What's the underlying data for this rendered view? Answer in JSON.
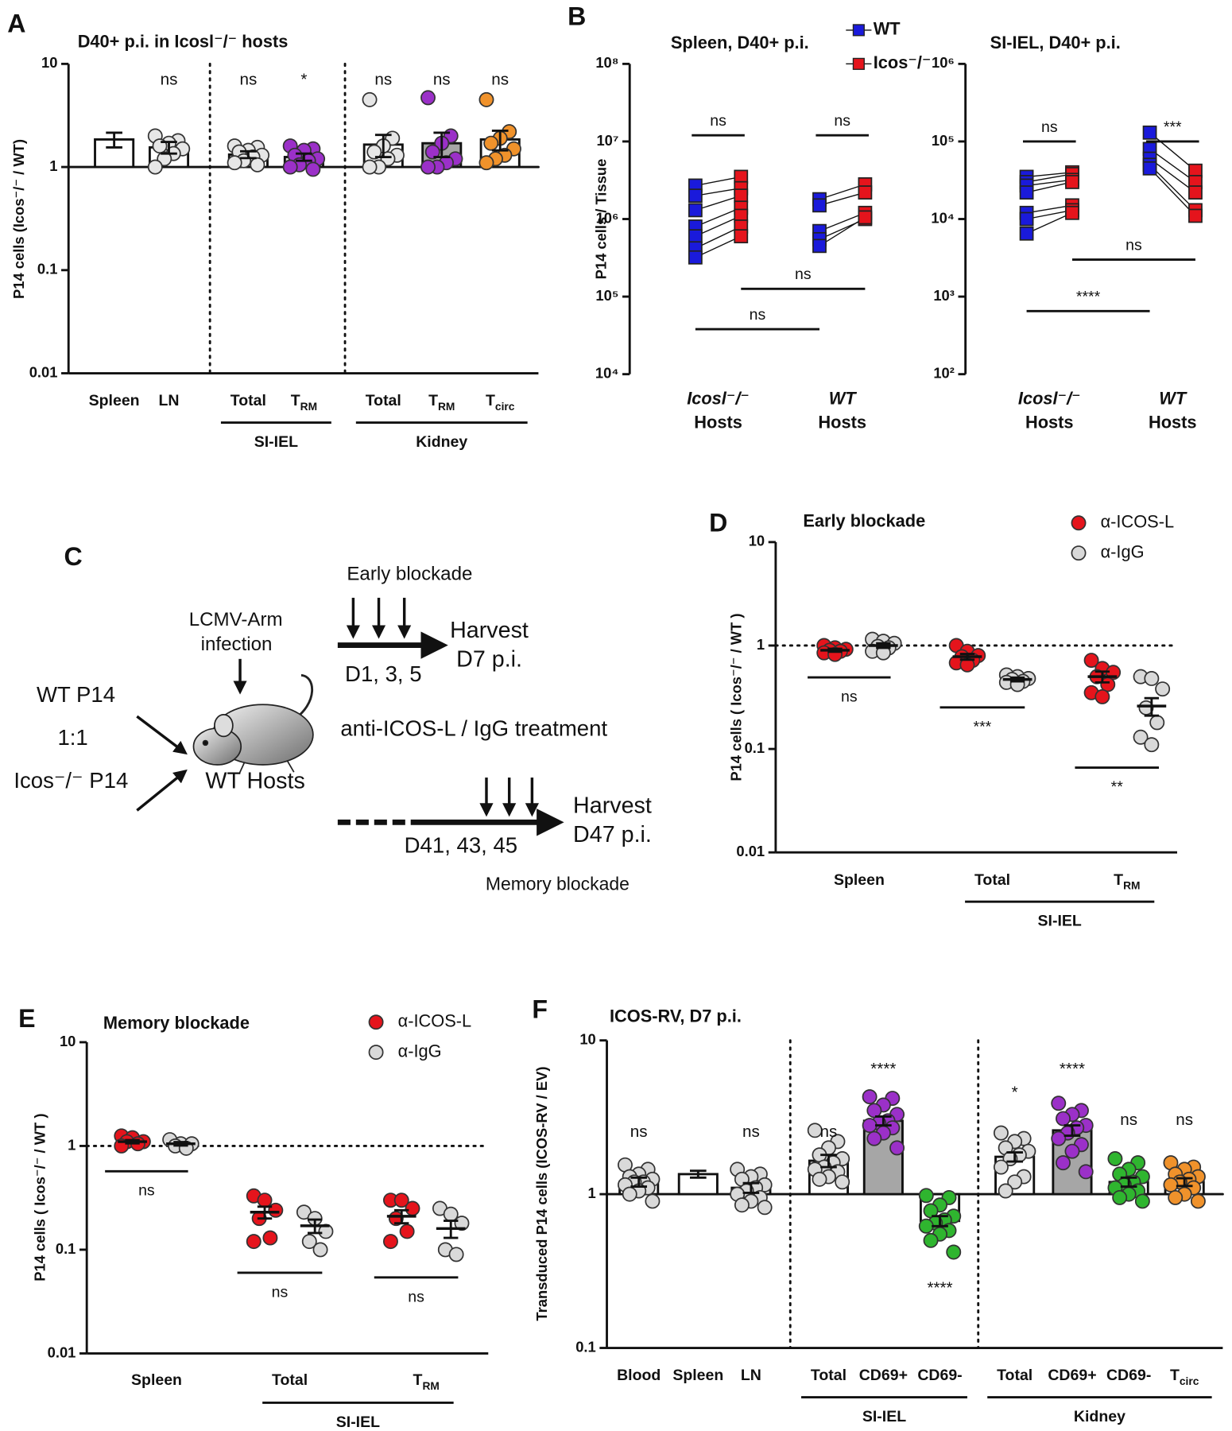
{
  "chart_data": [
    {
      "type": "bar",
      "panel": "A",
      "title": "D40+ p.i. in Icosl⁻/⁻ hosts",
      "ylabel": "P14 cells  (Icos⁻/⁻ / WT)",
      "log": true,
      "ylim": [
        0.01,
        10
      ],
      "yticks": [
        0.01,
        0.1,
        1,
        10
      ],
      "ref_line": {
        "value": 1,
        "style": "solid"
      },
      "separators": true,
      "groups": [
        {
          "label": "Spleen",
          "color": "#e6e6e6",
          "bar_color": "#ffffff",
          "mean": 1.85,
          "sem": 0.3,
          "values": [],
          "sig": null
        },
        {
          "label": "LN",
          "color": "#e6e6e6",
          "bar_color": "#ffffff",
          "mean": 1.55,
          "sem": 0.2,
          "values": [
            2.0,
            1.8,
            1.7,
            1.6,
            1.5,
            1.35,
            1.2,
            1.0
          ],
          "sig": "ns"
        },
        {
          "label": "Total",
          "color": "#e6e6e6",
          "bar_color": "#ffffff",
          "mean": 1.32,
          "sem": 0.1,
          "values": [
            1.6,
            1.55,
            1.45,
            1.4,
            1.3,
            1.25,
            1.15,
            1.1,
            1.05
          ],
          "sig": "ns"
        },
        {
          "label": "T",
          "subscript": "RM",
          "color": "#9b30c8",
          "bar_color": "#d9d9d9",
          "mean": 1.25,
          "sem": 0.1,
          "values": [
            1.6,
            1.5,
            1.45,
            1.3,
            1.2,
            1.15,
            1.05,
            1.0,
            0.95
          ],
          "sig": "*"
        },
        {
          "label": "Total",
          "color": "#e6e6e6",
          "bar_color": "#ffffff",
          "mean": 1.65,
          "sem": 0.4,
          "values": [
            4.5,
            1.9,
            1.6,
            1.4,
            1.3,
            1.2,
            1.0,
            1.0
          ],
          "sig": "ns"
        },
        {
          "label": "T",
          "subscript": "RM",
          "color": "#9b30c8",
          "bar_color": "#a6a6a6",
          "mean": 1.7,
          "sem": 0.45,
          "values": [
            4.7,
            2.0,
            1.7,
            1.4,
            1.2,
            1.1,
            1.0,
            1.0
          ],
          "sig": "ns"
        },
        {
          "label": "T",
          "subscript": "circ",
          "color": "#f0922b",
          "bar_color": "#ffffff",
          "mean": 1.85,
          "sem": 0.4,
          "values": [
            4.5,
            2.2,
            1.9,
            1.7,
            1.5,
            1.3,
            1.2,
            1.1
          ],
          "sig": "ns"
        }
      ],
      "sections": [
        {
          "label": "SI-IEL",
          "groups": [
            2,
            3
          ]
        },
        {
          "label": "Kidney",
          "groups": [
            4,
            5,
            6
          ]
        }
      ]
    },
    {
      "type": "paired",
      "panel": "B",
      "title": "Spleen, D40+ p.i.",
      "ylabel": "P14 cells / Tissue",
      "log": true,
      "legend": "top-right",
      "ylim": [
        10000,
        100000000
      ],
      "yticks": [
        {
          "value": 10000,
          "label": "10⁴"
        },
        {
          "value": 100000,
          "label": "10⁵"
        },
        {
          "value": 1000000,
          "label": "10⁶"
        },
        {
          "value": 10000000,
          "label": "10⁷"
        },
        {
          "value": 100000000,
          "label": "10⁸"
        }
      ],
      "categories": [
        {
          "label": "Icosl⁻/⁻",
          "sublabel": "Hosts"
        },
        {
          "label": "WT",
          "sublabel": "Hosts"
        }
      ],
      "series": [
        {
          "name": "WT",
          "color": "#1a1adb",
          "values": [
            [
              2700000,
              2000000,
              1300000,
              800000,
              600000,
              420000,
              320000
            ],
            [
              1800000,
              1500000,
              700000,
              550000,
              450000
            ]
          ]
        },
        {
          "name": "Icos⁻/⁻",
          "color": "#e5141c",
          "values": [
            [
              3500000,
              2500000,
              2000000,
              1400000,
              1100000,
              800000,
              600000
            ],
            [
              2800000,
              2200000,
              1200000,
              1000000,
              1050000
            ]
          ]
        }
      ],
      "brackets": [
        {
          "label": "ns",
          "y": 12000000,
          "cats": [
            0,
            0
          ],
          "series": [
            0,
            1
          ]
        },
        {
          "label": "ns",
          "y": 12000000,
          "cats": [
            1,
            1
          ],
          "series": [
            0,
            1
          ]
        },
        {
          "label": "ns",
          "y": 126000,
          "cats": [
            0,
            1
          ],
          "series": [
            1,
            1
          ]
        },
        {
          "label": "ns",
          "y": 38000,
          "cats": [
            0,
            1
          ],
          "series": [
            0,
            0
          ]
        }
      ]
    },
    {
      "type": "paired",
      "title": "SI-IEL, D40+ p.i.",
      "log": true,
      "ylim": [
        100,
        1000000
      ],
      "yticks": [
        {
          "value": 100,
          "label": "10²"
        },
        {
          "value": 1000,
          "label": "10³"
        },
        {
          "value": 10000,
          "label": "10⁴"
        },
        {
          "value": 100000,
          "label": "10⁵"
        },
        {
          "value": 1000000,
          "label": "10⁶"
        }
      ],
      "categories": [
        {
          "label": "Icosl⁻/⁻",
          "sublabel": "Hosts"
        },
        {
          "label": "WT",
          "sublabel": "Hosts"
        }
      ],
      "series": [
        {
          "color": "#1a1adb",
          "values": [
            [
              35000,
              30000,
              27000,
              22000,
              12000,
              10000,
              6500
            ],
            [
              130000,
              80000,
              60000,
              50000,
              45000
            ]
          ]
        },
        {
          "color": "#e5141c",
          "values": [
            [
              40000,
              38000,
              32000,
              30000,
              15000,
              13000,
              12000
            ],
            [
              42000,
              30000,
              22000,
              13000,
              11000
            ]
          ]
        }
      ],
      "brackets": [
        {
          "label": "ns",
          "y": 100000,
          "cats": [
            0,
            0
          ],
          "series": [
            0,
            1
          ]
        },
        {
          "label": "***",
          "y": 100000,
          "cats": [
            1,
            1
          ],
          "series": [
            0,
            1
          ]
        },
        {
          "label": "ns",
          "y": 3000,
          "cats": [
            0,
            1
          ],
          "series": [
            1,
            1
          ]
        },
        {
          "label": "****",
          "y": 650,
          "cats": [
            0,
            1
          ],
          "series": [
            0,
            0
          ]
        }
      ]
    },
    {
      "type": "dot",
      "panel": "D",
      "title": "Early blockade",
      "ylabel": "P14 cells  ( Icos⁻/⁻ / WT )",
      "log": true,
      "legend": "top-right",
      "ylim": [
        0.01,
        10
      ],
      "yticks": [
        0.01,
        0.1,
        1,
        10
      ],
      "ref_line": {
        "value": 1,
        "style": "dotted"
      },
      "categories": [
        {
          "label": "Spleen"
        },
        {
          "label": "Total"
        },
        {
          "label": "T",
          "subscript": "RM"
        }
      ],
      "series": [
        {
          "name": "α-ICOS-L",
          "color": "#e5141c",
          "values": [
            [
              1.0,
              0.95,
              0.92,
              0.9,
              0.88,
              0.85,
              0.82
            ],
            [
              1.0,
              0.88,
              0.8,
              0.78,
              0.72,
              0.68,
              0.65
            ],
            [
              0.72,
              0.6,
              0.55,
              0.5,
              0.42,
              0.35,
              0.32
            ]
          ],
          "means": [
            0.9,
            0.78,
            0.5
          ],
          "sems": [
            0.03,
            0.05,
            0.06
          ]
        },
        {
          "name": "α-IgG",
          "color": "#d9d9d9",
          "values": [
            [
              1.15,
              1.1,
              1.05,
              0.98,
              0.95,
              0.88,
              0.85
            ],
            [
              0.52,
              0.5,
              0.48,
              0.47,
              0.45,
              0.44,
              0.42
            ],
            [
              0.5,
              0.48,
              0.38,
              0.25,
              0.18,
              0.13,
              0.11
            ]
          ],
          "means": [
            1.0,
            0.47,
            0.26
          ],
          "sems": [
            0.05,
            0.02,
            0.05
          ]
        }
      ],
      "comparisons": [
        "ns",
        "***",
        "**"
      ],
      "sections": [
        {
          "label": "SI-IEL",
          "groups": [
            1,
            2
          ]
        }
      ]
    },
    {
      "type": "dot",
      "panel": "E",
      "title": "Memory blockade",
      "ylabel": "P14 cells  ( Icos⁻/⁻ / WT )",
      "log": true,
      "legend": "top-right",
      "ylim": [
        0.01,
        10
      ],
      "yticks": [
        0.01,
        0.1,
        1,
        10
      ],
      "ref_line": {
        "value": 1,
        "style": "dotted"
      },
      "categories": [
        {
          "label": "Spleen"
        },
        {
          "label": "Total"
        },
        {
          "label": "T",
          "subscript": "RM"
        }
      ],
      "series": [
        {
          "name": "α-ICOS-L",
          "color": "#e5141c",
          "values": [
            [
              1.25,
              1.2,
              1.1,
              1.1,
              1.05,
              1.0
            ],
            [
              0.33,
              0.3,
              0.24,
              0.2,
              0.13,
              0.12
            ],
            [
              0.3,
              0.3,
              0.25,
              0.2,
              0.15,
              0.12
            ]
          ],
          "means": [
            1.1,
            0.23,
            0.21
          ],
          "sems": [
            0.04,
            0.03,
            0.03
          ]
        },
        {
          "name": "α-IgG",
          "color": "#d9d9d9",
          "values": [
            [
              1.15,
              1.05,
              1.05,
              1.0,
              0.95
            ],
            [
              0.23,
              0.2,
              0.15,
              0.12,
              0.1
            ],
            [
              0.25,
              0.22,
              0.18,
              0.1,
              0.09
            ]
          ],
          "means": [
            1.05,
            0.17,
            0.16
          ],
          "sems": [
            0.04,
            0.025,
            0.03
          ]
        }
      ],
      "comparisons": [
        "ns",
        "ns",
        "ns"
      ],
      "sections": [
        {
          "label": "SI-IEL",
          "groups": [
            1,
            2
          ]
        }
      ]
    },
    {
      "type": "bar",
      "panel": "F",
      "title": "ICOS-RV, D7 p.i.",
      "ylabel": "Transduced P14 cells (ICOS-RV / EV)",
      "log": true,
      "ylim": [
        0.1,
        10
      ],
      "yticks": [
        0.1,
        1,
        10
      ],
      "ref_line": {
        "value": 1,
        "style": "solid"
      },
      "separators": true,
      "groups": [
        {
          "label": "Blood",
          "color": "#d9d9d9",
          "bar_color": "#ffffff",
          "mean": 1.2,
          "sem": 0.08,
          "values": [
            1.55,
            1.45,
            1.35,
            1.3,
            1.25,
            1.2,
            1.2,
            1.15,
            1.1,
            1.05,
            1.0,
            0.9
          ],
          "sig": "ns"
        },
        {
          "label": "Spleen",
          "color": "#d9d9d9",
          "bar_color": "#ffffff",
          "mean": 1.35,
          "sem": 0.07,
          "values": [],
          "sig": null
        },
        {
          "label": "LN",
          "color": "#d9d9d9",
          "bar_color": "#ffffff",
          "mean": 1.1,
          "sem": 0.08,
          "values": [
            1.45,
            1.35,
            1.3,
            1.25,
            1.15,
            1.1,
            1.05,
            1.0,
            0.95,
            0.9,
            0.85,
            0.82
          ],
          "sig": "ns"
        },
        {
          "label": "Total",
          "color": "#d9d9d9",
          "bar_color": "#ffffff",
          "mean": 1.65,
          "sem": 0.15,
          "values": [
            2.6,
            2.2,
            2.0,
            1.8,
            1.7,
            1.6,
            1.5,
            1.45,
            1.4,
            1.3,
            1.25,
            1.2
          ],
          "sig": "ns"
        },
        {
          "label": "CD69+",
          "color": "#9b30c8",
          "bar_color": "#a6a6a6",
          "mean": 3.0,
          "sem": 0.2,
          "values": [
            4.3,
            4.2,
            3.8,
            3.5,
            3.3,
            3.0,
            2.9,
            2.8,
            2.7,
            2.5,
            2.3,
            2.0
          ],
          "sig": "****"
        },
        {
          "label": "CD69-",
          "color": "#2fb52f",
          "bar_color": "#ffffff",
          "mean": 0.67,
          "sem": 0.05,
          "values": [
            0.98,
            0.95,
            0.85,
            0.78,
            0.72,
            0.68,
            0.65,
            0.62,
            0.58,
            0.55,
            0.5,
            0.42
          ],
          "sig": "****"
        },
        {
          "label": "Total",
          "color": "#d9d9d9",
          "bar_color": "#ffffff",
          "mean": 1.75,
          "sem": 0.12,
          "values": [
            2.5,
            2.3,
            2.2,
            2.0,
            1.9,
            1.8,
            1.7,
            1.5,
            1.3,
            1.2,
            1.05
          ],
          "sig": "*"
        },
        {
          "label": "CD69+",
          "color": "#9b30c8",
          "bar_color": "#a6a6a6",
          "mean": 2.6,
          "sem": 0.2,
          "values": [
            3.9,
            3.5,
            3.3,
            3.1,
            2.8,
            2.7,
            2.5,
            2.3,
            2.1,
            1.9,
            1.6,
            1.4
          ],
          "sig": "****"
        },
        {
          "label": "CD69-",
          "color": "#2fb52f",
          "bar_color": "#ffffff",
          "mean": 1.2,
          "sem": 0.08,
          "values": [
            1.7,
            1.6,
            1.45,
            1.35,
            1.3,
            1.2,
            1.15,
            1.1,
            1.05,
            1.0,
            0.95,
            0.9
          ],
          "sig": "ns"
        },
        {
          "label": "T",
          "subscript": "circ",
          "color": "#f0922b",
          "bar_color": "#ffffff",
          "mean": 1.2,
          "sem": 0.07,
          "values": [
            1.6,
            1.5,
            1.45,
            1.35,
            1.3,
            1.25,
            1.2,
            1.15,
            1.1,
            1.0,
            0.95,
            0.9
          ],
          "sig": "ns"
        }
      ],
      "sections": [
        {
          "label": "SI-IEL",
          "groups": [
            3,
            4,
            5
          ]
        },
        {
          "label": "Kidney",
          "groups": [
            6,
            7,
            8,
            9
          ]
        }
      ]
    }
  ],
  "diagram": {
    "panel": "C",
    "inputs": [
      "WT P14",
      "1:1",
      "Icos⁻/⁻ P14"
    ],
    "infection": [
      "LCMV-Arm",
      "infection"
    ],
    "host": "WT Hosts",
    "treatment": "anti-ICOS-L / IgG treatment",
    "early": {
      "label": "Early blockade",
      "days": "D1, 3, 5",
      "harvest": [
        "Harvest",
        "D7 p.i."
      ]
    },
    "memory": {
      "label": "Memory blockade",
      "days": "D41, 43, 45",
      "harvest": [
        "Harvest",
        "D47 p.i."
      ]
    }
  }
}
